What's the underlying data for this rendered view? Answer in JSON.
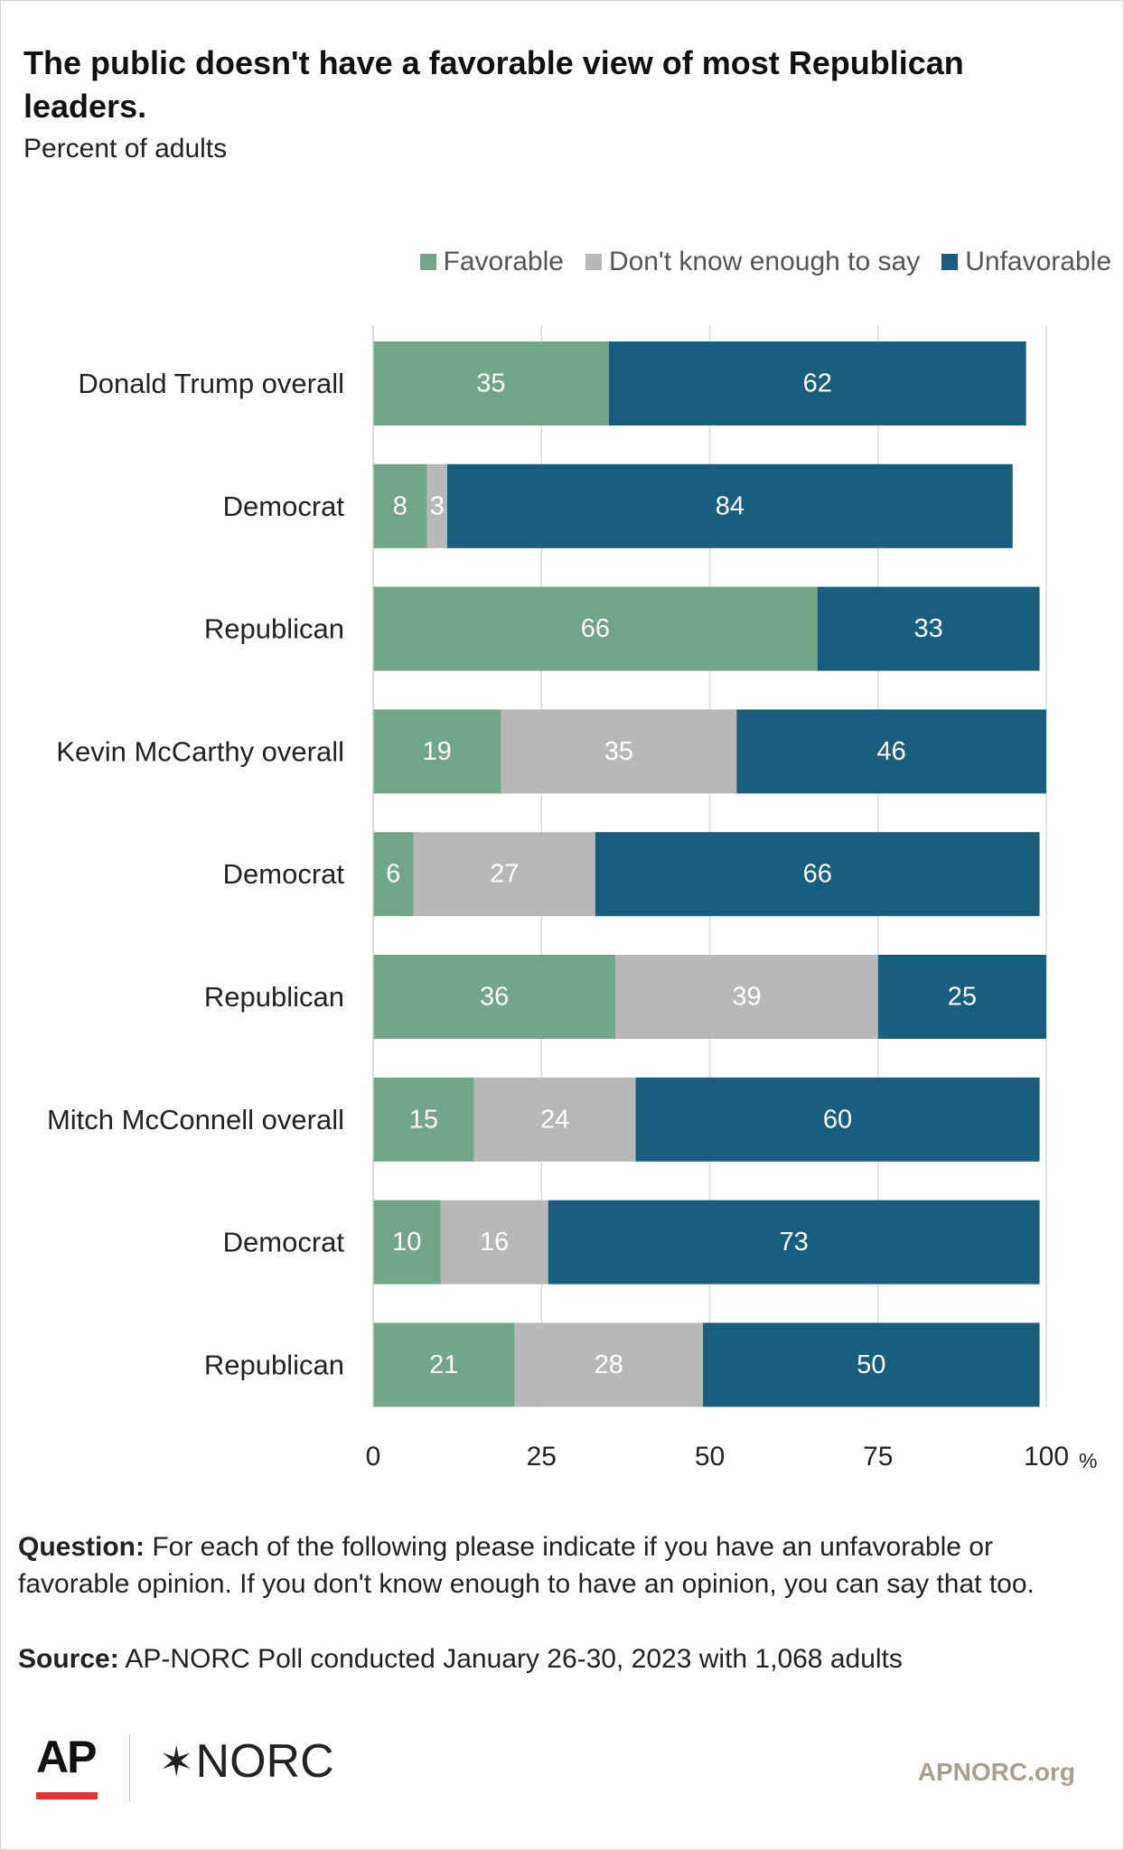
{
  "header": {
    "title": "The public doesn't have a favorable view of most Republican leaders.",
    "subtitle": "Percent of adults"
  },
  "legend": {
    "items": [
      {
        "label": "Favorable",
        "color": "#72a68a"
      },
      {
        "label": "Don't know enough to say",
        "color": "#b8b8b8"
      },
      {
        "label": "Unfavorable",
        "color": "#185e7e"
      }
    ]
  },
  "chart_data": {
    "type": "bar",
    "orientation": "horizontal",
    "stacked": true,
    "title": "The public doesn't have a favorable view of most Republican leaders.",
    "subtitle": "Percent of adults",
    "categories": [
      "Donald Trump overall",
      "Democrat",
      "Republican",
      "Kevin McCarthy overall",
      "Democrat",
      "Republican",
      "Mitch McConnell overall",
      "Democrat",
      "Republican"
    ],
    "series": [
      {
        "name": "Favorable",
        "color": "#72a68a",
        "values": [
          35,
          8,
          66,
          19,
          6,
          36,
          15,
          10,
          21
        ]
      },
      {
        "name": "Don't know enough to say",
        "color": "#b8b8b8",
        "values": [
          0,
          3,
          0,
          35,
          27,
          39,
          24,
          16,
          28
        ]
      },
      {
        "name": "Unfavorable",
        "color": "#185e7e",
        "values": [
          62,
          84,
          33,
          46,
          66,
          25,
          60,
          73,
          50
        ]
      }
    ],
    "xlim": [
      0,
      100
    ],
    "xticks": [
      "0",
      "25",
      "50",
      "75",
      "100"
    ],
    "x_unit": "%",
    "grid": "vertical",
    "legend_position": "top-right"
  },
  "footer": {
    "question_label": "Question:",
    "question_text": "For each of the following please indicate if you have an unfavorable or favorable opinion. If you don't know enough to have an opinion, you can say that too.",
    "source_label": "Source:",
    "source_text": "AP-NORC Poll conducted January 26-30, 2023 with 1,068 adults"
  },
  "branding": {
    "ap_logo": "AP",
    "norc_logo": "NORC",
    "site": "APNORC.org"
  }
}
